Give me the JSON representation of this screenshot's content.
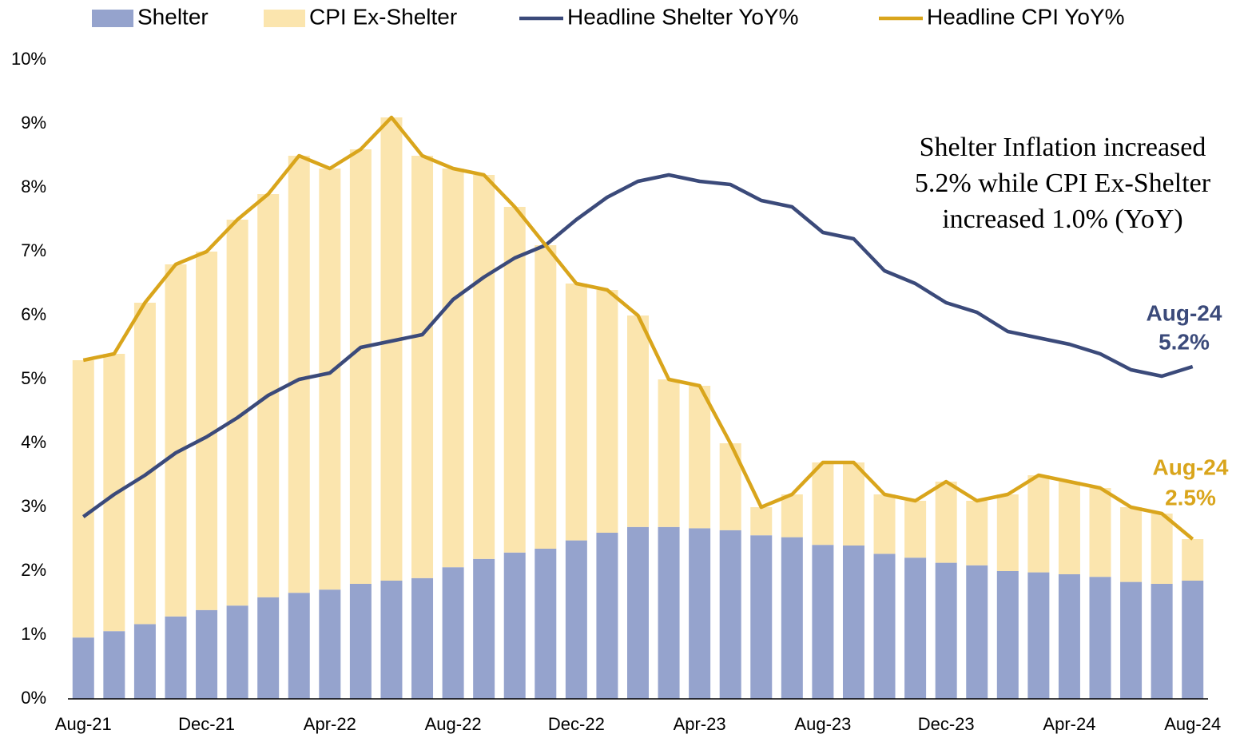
{
  "chart_data": {
    "type": "bar",
    "stacked": true,
    "categories": [
      "Aug-21",
      null,
      null,
      null,
      "Dec-21",
      null,
      null,
      null,
      "Apr-22",
      null,
      null,
      null,
      "Aug-22",
      null,
      null,
      null,
      "Dec-22",
      null,
      null,
      null,
      "Apr-23",
      null,
      null,
      null,
      "Aug-23",
      null,
      null,
      null,
      "Dec-23",
      null,
      null,
      null,
      "Apr-24",
      null,
      null,
      null,
      "Aug-24"
    ],
    "series": [
      {
        "name": "Shelter",
        "kind": "bar",
        "color": "#95a3cd",
        "values": [
          0.96,
          1.06,
          1.17,
          1.29,
          1.39,
          1.46,
          1.59,
          1.66,
          1.71,
          1.8,
          1.85,
          1.89,
          2.06,
          2.19,
          2.29,
          2.35,
          2.48,
          2.6,
          2.69,
          2.69,
          2.67,
          2.64,
          2.56,
          2.53,
          2.41,
          2.4,
          2.27,
          2.21,
          2.13,
          2.09,
          2.0,
          1.98,
          1.95,
          1.91,
          1.83,
          1.8,
          1.85
        ]
      },
      {
        "name": "CPI Ex-Shelter",
        "kind": "bar",
        "color": "#fbe5ae",
        "values": [
          4.34,
          4.34,
          5.03,
          5.51,
          5.61,
          6.04,
          6.31,
          6.84,
          6.59,
          6.8,
          7.25,
          6.61,
          6.24,
          6.01,
          5.41,
          4.75,
          4.02,
          3.8,
          3.31,
          2.31,
          2.23,
          1.36,
          0.44,
          0.67,
          1.29,
          1.3,
          0.93,
          0.89,
          1.27,
          1.01,
          1.2,
          1.52,
          1.45,
          1.39,
          1.17,
          1.1,
          0.65
        ]
      },
      {
        "name": "Headline Shelter YoY%",
        "kind": "line",
        "color": "#3b4a7a",
        "values": [
          2.85,
          3.2,
          3.5,
          3.85,
          4.1,
          4.4,
          4.75,
          5.0,
          5.1,
          5.5,
          5.6,
          5.7,
          6.25,
          6.6,
          6.9,
          7.1,
          7.5,
          7.85,
          8.1,
          8.2,
          8.1,
          8.05,
          7.8,
          7.7,
          7.3,
          7.2,
          6.7,
          6.5,
          6.2,
          6.05,
          5.75,
          5.65,
          5.55,
          5.4,
          5.15,
          5.05,
          5.2
        ]
      },
      {
        "name": "Headline CPI YoY%",
        "kind": "line",
        "color": "#d9a51c",
        "values": [
          5.3,
          5.4,
          6.2,
          6.8,
          7.0,
          7.5,
          7.9,
          8.5,
          8.3,
          8.6,
          9.1,
          8.5,
          8.3,
          8.2,
          7.7,
          7.1,
          6.5,
          6.4,
          6.0,
          5.0,
          4.9,
          4.0,
          3.0,
          3.2,
          3.7,
          3.7,
          3.2,
          3.1,
          3.4,
          3.1,
          3.2,
          3.5,
          3.4,
          3.3,
          3.0,
          2.9,
          2.5
        ]
      }
    ],
    "ylim": [
      0,
      10
    ],
    "yticks": [
      {
        "value": 0,
        "label": "0%"
      },
      {
        "value": 1,
        "label": "1%"
      },
      {
        "value": 2,
        "label": "2%"
      },
      {
        "value": 3,
        "label": "3%"
      },
      {
        "value": 4,
        "label": "4%"
      },
      {
        "value": 5,
        "label": "5%"
      },
      {
        "value": 6,
        "label": "6%"
      },
      {
        "value": 7,
        "label": "7%"
      },
      {
        "value": 8,
        "label": "8%"
      },
      {
        "value": 9,
        "label": "9%"
      },
      {
        "value": 10,
        "label": "10%"
      }
    ],
    "legend": "top",
    "annotations": [
      {
        "lines": [
          "Shelter Inflation increased",
          "5.2% while CPI Ex-Shelter",
          "increased 1.0% (YoY)"
        ],
        "color": "#000000"
      },
      {
        "lines": [
          "Aug-24",
          "5.2%"
        ],
        "color": "#3b4a7a"
      },
      {
        "lines": [
          "Aug-24",
          "2.5%"
        ],
        "color": "#d9a51c"
      }
    ]
  }
}
